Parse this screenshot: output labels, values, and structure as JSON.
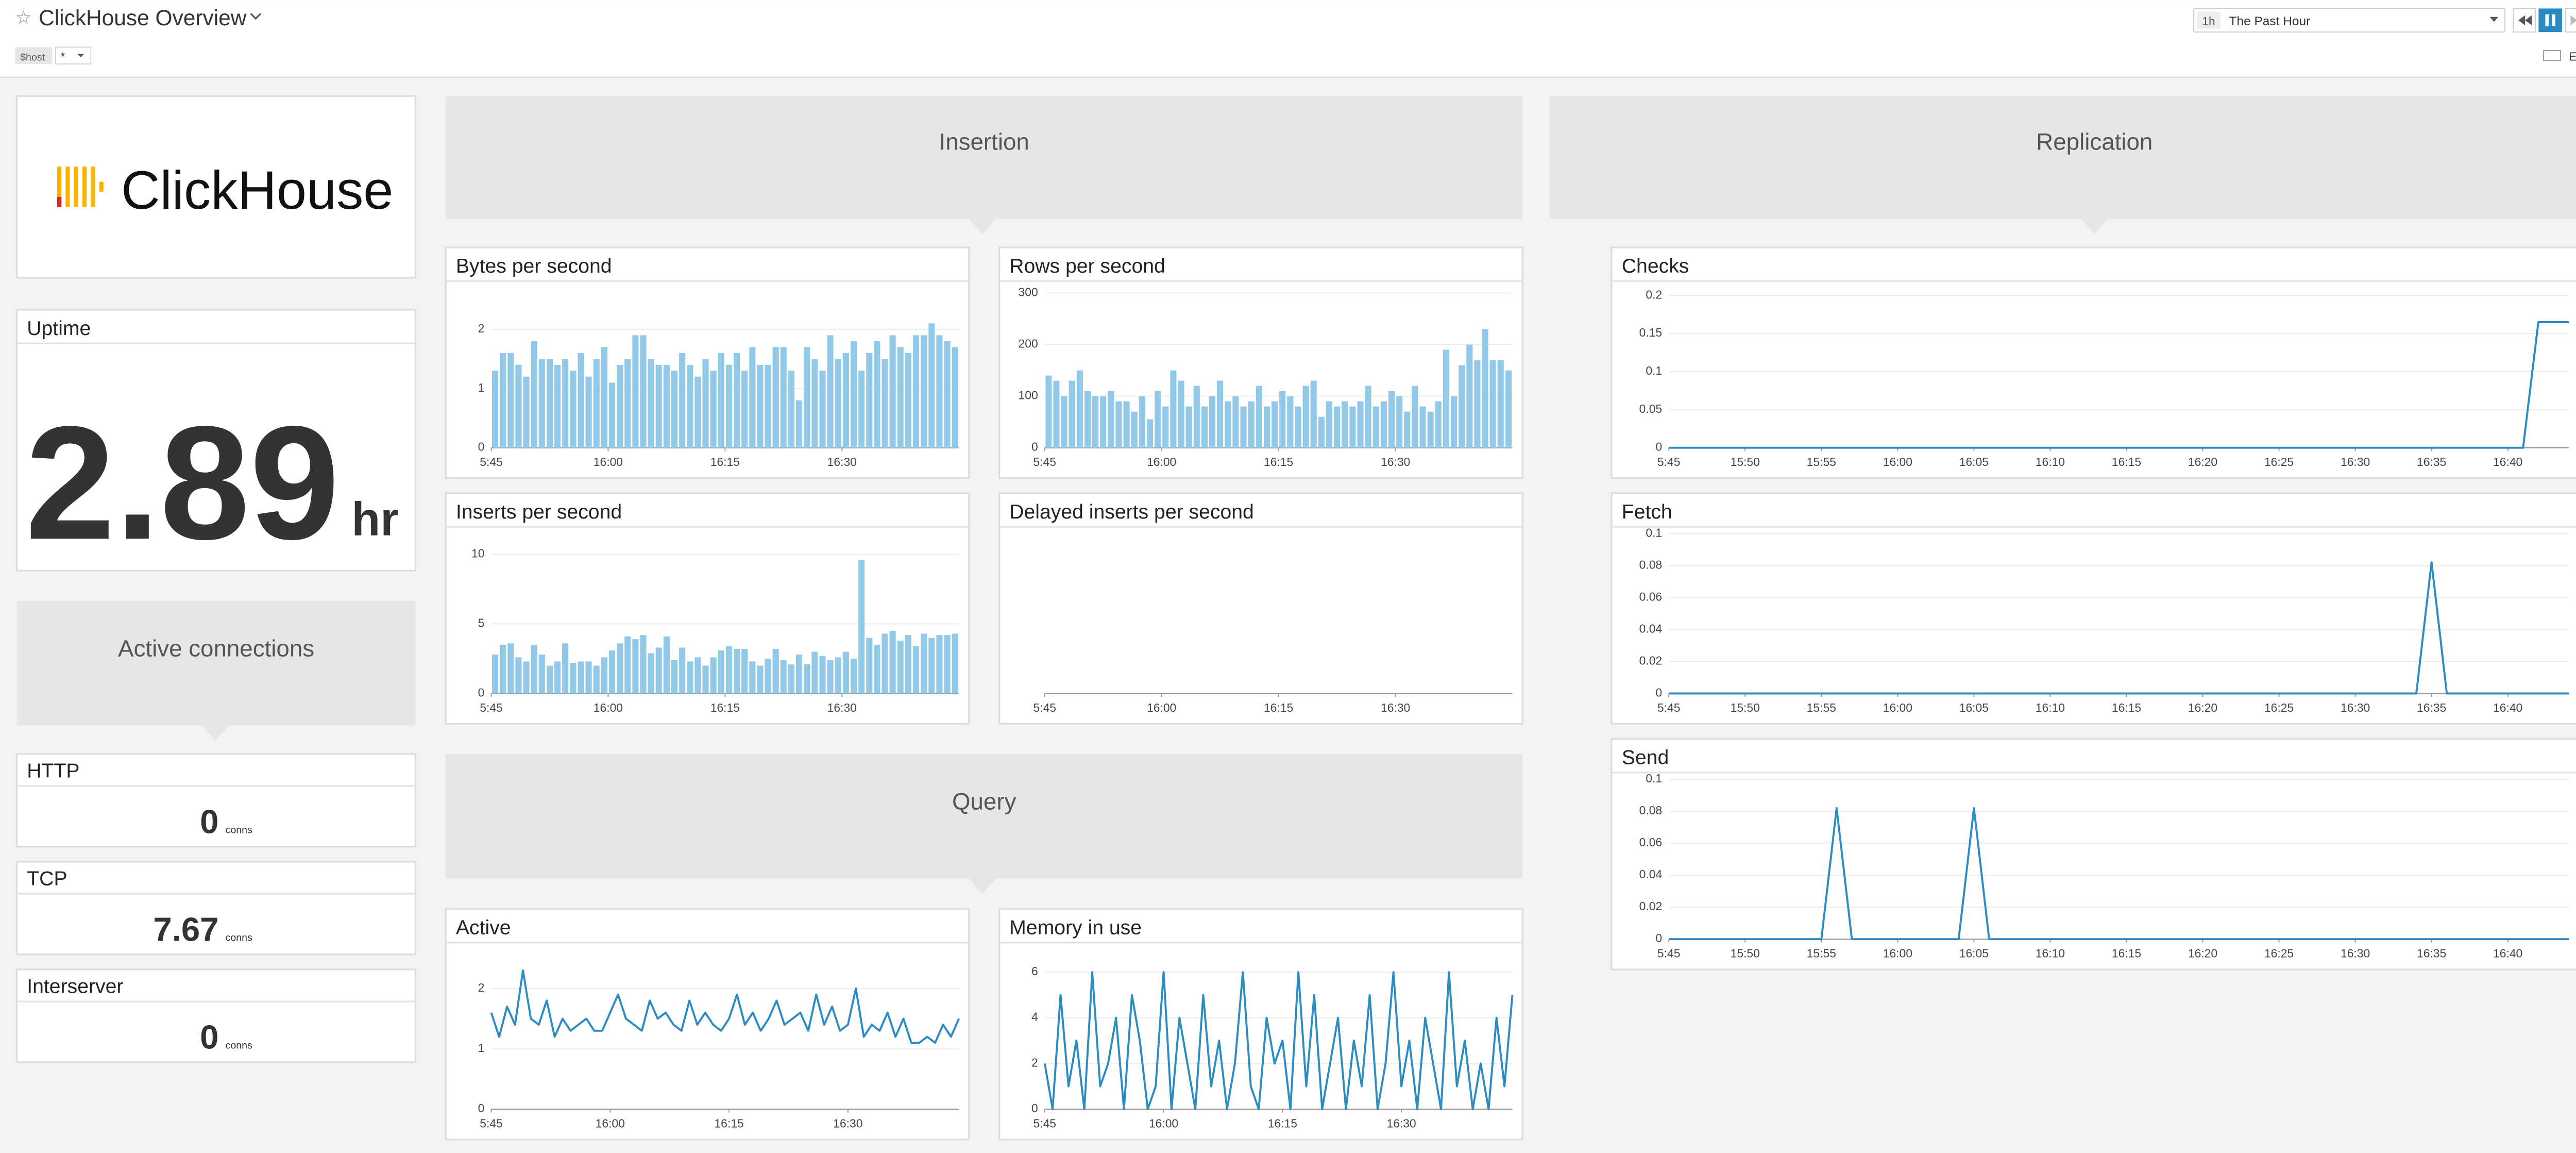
{
  "header": {
    "title": "ClickHouse Overview",
    "variable": "$host",
    "variable_value": "*",
    "range_short": "1h",
    "range": "The Past Hour",
    "esc": "Esc",
    "slash": "/"
  },
  "widgets": {
    "logo": "ClickHouse",
    "uptime": {
      "title": "Uptime",
      "value": 2.89,
      "unit": "hr"
    },
    "connections_group": "Active connections",
    "connections": [
      {
        "title": "HTTP",
        "value": 0,
        "unit": "conns"
      },
      {
        "title": "TCP",
        "value": 7.67,
        "unit": "conns"
      },
      {
        "title": "Interserver",
        "value": 0,
        "unit": "conns"
      }
    ]
  },
  "groups": [
    "Insertion",
    "Replication",
    "Query"
  ],
  "chart_data": [
    {
      "type": "bar",
      "title": "Bytes per second",
      "color": "#93c9e8",
      "ylim": [
        0,
        2.7
      ],
      "yticks": [
        0,
        1,
        2
      ],
      "grid": true,
      "categories": [
        "5:45",
        null,
        null,
        null,
        null,
        null,
        null,
        null,
        null,
        null,
        null,
        null,
        null,
        null,
        null,
        "16:00",
        null,
        null,
        null,
        null,
        null,
        null,
        null,
        null,
        null,
        null,
        null,
        null,
        null,
        null,
        "16:15",
        null,
        null,
        null,
        null,
        null,
        null,
        null,
        null,
        null,
        null,
        null,
        null,
        null,
        null,
        "16:30",
        null,
        null,
        null,
        null,
        null,
        null,
        null,
        null,
        null,
        null,
        null,
        null,
        null,
        null
      ],
      "values": [
        1.3,
        1.6,
        1.6,
        1.4,
        1.2,
        1.8,
        1.5,
        1.5,
        1.4,
        1.5,
        1.3,
        1.6,
        1.2,
        1.5,
        1.7,
        1.1,
        1.4,
        1.5,
        1.9,
        1.9,
        1.5,
        1.4,
        1.4,
        1.3,
        1.6,
        1.4,
        1.2,
        1.5,
        1.3,
        1.6,
        1.4,
        1.6,
        1.3,
        1.7,
        1.4,
        1.4,
        1.7,
        1.7,
        1.3,
        0.8,
        1.7,
        1.5,
        1.3,
        1.9,
        1.5,
        1.6,
        1.8,
        1.3,
        1.6,
        1.8,
        1.5,
        1.9,
        1.7,
        1.6,
        1.9,
        1.9,
        2.1,
        1.9,
        1.8,
        1.7
      ]
    },
    {
      "type": "bar",
      "title": "Rows per second",
      "color": "#93c9e8",
      "ylim": [
        0,
        310
      ],
      "yticks": [
        0,
        100,
        200,
        300
      ],
      "grid": true,
      "categories": [
        "5:45",
        null,
        null,
        null,
        null,
        null,
        null,
        null,
        null,
        null,
        null,
        null,
        null,
        null,
        null,
        "16:00",
        null,
        null,
        null,
        null,
        null,
        null,
        null,
        null,
        null,
        null,
        null,
        null,
        null,
        null,
        "16:15",
        null,
        null,
        null,
        null,
        null,
        null,
        null,
        null,
        null,
        null,
        null,
        null,
        null,
        null,
        "16:30",
        null,
        null,
        null,
        null,
        null,
        null,
        null,
        null,
        null,
        null,
        null,
        null,
        null,
        null
      ],
      "values": [
        140,
        130,
        100,
        130,
        150,
        110,
        100,
        100,
        110,
        90,
        90,
        70,
        100,
        55,
        110,
        80,
        150,
        130,
        80,
        120,
        80,
        100,
        130,
        90,
        100,
        80,
        90,
        120,
        80,
        90,
        110,
        100,
        80,
        120,
        130,
        60,
        90,
        80,
        90,
        80,
        90,
        120,
        80,
        90,
        110,
        100,
        70,
        120,
        80,
        70,
        90,
        190,
        100,
        160,
        200,
        170,
        230,
        170,
        170,
        150
      ]
    },
    {
      "type": "bar",
      "title": "Inserts per second",
      "color": "#93c9e8",
      "ylim": [
        0,
        11.5
      ],
      "yticks": [
        0,
        5,
        10
      ],
      "grid": true,
      "categories": [
        "5:45",
        null,
        null,
        null,
        null,
        null,
        null,
        null,
        null,
        null,
        null,
        null,
        null,
        null,
        null,
        "16:00",
        null,
        null,
        null,
        null,
        null,
        null,
        null,
        null,
        null,
        null,
        null,
        null,
        null,
        null,
        "16:15",
        null,
        null,
        null,
        null,
        null,
        null,
        null,
        null,
        null,
        null,
        null,
        null,
        null,
        null,
        "16:30",
        null,
        null,
        null,
        null,
        null,
        null,
        null,
        null,
        null,
        null,
        null,
        null,
        null,
        null
      ],
      "values": [
        2.8,
        3.5,
        3.6,
        2.6,
        2.3,
        3.5,
        2.8,
        2.0,
        2.3,
        3.6,
        2.2,
        2.3,
        2.3,
        2.0,
        2.6,
        3.1,
        3.6,
        4.1,
        3.9,
        4.2,
        2.9,
        3.3,
        4.1,
        2.4,
        3.3,
        2.3,
        2.6,
        2.0,
        2.6,
        3.1,
        3.4,
        3.2,
        3.2,
        2.3,
        2.0,
        2.5,
        3.2,
        2.4,
        2.1,
        2.8,
        2.1,
        3.0,
        2.7,
        2.4,
        2.6,
        3.0,
        2.5,
        9.6,
        4.0,
        3.5,
        4.3,
        4.5,
        3.8,
        4.2,
        3.4,
        4.3,
        4.0,
        4.2,
        4.2,
        4.3
      ]
    },
    {
      "type": "bar",
      "title": "Delayed inserts per second",
      "color": "#93c9e8",
      "categories": [
        "5:45",
        null,
        null,
        null,
        null,
        null,
        null,
        null,
        null,
        null,
        null,
        null,
        null,
        null,
        null,
        "16:00",
        null,
        null,
        null,
        null,
        null,
        null,
        null,
        null,
        null,
        null,
        null,
        null,
        null,
        null,
        "16:15",
        null,
        null,
        null,
        null,
        null,
        null,
        null,
        null,
        null,
        null,
        null,
        null,
        null,
        null,
        "16:30",
        null,
        null,
        null,
        null,
        null,
        null,
        null,
        null,
        null,
        null,
        null,
        null,
        null,
        null
      ],
      "values": [
        null,
        null,
        null,
        null,
        null,
        null,
        null,
        null,
        null,
        null,
        null,
        null,
        null,
        null,
        null,
        null,
        null,
        null,
        null,
        null,
        null,
        null,
        null,
        null,
        null,
        null,
        null,
        null,
        null,
        null,
        null,
        null,
        null,
        null,
        null,
        null,
        null,
        null,
        null,
        null,
        null,
        null,
        null,
        null,
        null,
        null,
        null,
        null,
        null,
        null,
        null,
        null,
        null,
        null,
        null,
        null,
        null,
        null,
        null,
        null
      ]
    },
    {
      "type": "line",
      "title": "Active",
      "color": "#2b8cc4",
      "ylim": [
        0,
        2.65
      ],
      "yticks": [
        0,
        1,
        2
      ],
      "grid": true,
      "categories": [
        "5:45",
        null,
        null,
        null,
        null,
        null,
        null,
        null,
        null,
        null,
        null,
        null,
        null,
        null,
        null,
        "16:00",
        null,
        null,
        null,
        null,
        null,
        null,
        null,
        null,
        null,
        null,
        null,
        null,
        null,
        null,
        "16:15",
        null,
        null,
        null,
        null,
        null,
        null,
        null,
        null,
        null,
        null,
        null,
        null,
        null,
        null,
        "16:30",
        null,
        null,
        null,
        null,
        null,
        null,
        null,
        null,
        null,
        null,
        null,
        null,
        null,
        null
      ],
      "values": [
        1.6,
        1.2,
        1.7,
        1.4,
        2.3,
        1.5,
        1.4,
        1.8,
        1.2,
        1.5,
        1.3,
        1.4,
        1.5,
        1.3,
        1.3,
        1.6,
        1.9,
        1.5,
        1.4,
        1.3,
        1.8,
        1.5,
        1.6,
        1.4,
        1.3,
        1.8,
        1.4,
        1.6,
        1.4,
        1.3,
        1.5,
        1.9,
        1.4,
        1.6,
        1.3,
        1.5,
        1.8,
        1.4,
        1.5,
        1.6,
        1.3,
        1.9,
        1.4,
        1.7,
        1.3,
        1.4,
        2.0,
        1.2,
        1.4,
        1.3,
        1.6,
        1.2,
        1.5,
        1.1,
        1.1,
        1.2,
        1.1,
        1.4,
        1.2,
        1.5
      ]
    },
    {
      "type": "line",
      "title": "Memory in use",
      "color": "#2b8cc4",
      "ylim": [
        0,
        7
      ],
      "yticks": [
        0,
        2,
        4,
        6
      ],
      "grid": true,
      "categories": [
        "5:45",
        null,
        null,
        null,
        null,
        null,
        null,
        null,
        null,
        null,
        null,
        null,
        null,
        null,
        null,
        "16:00",
        null,
        null,
        null,
        null,
        null,
        null,
        null,
        null,
        null,
        null,
        null,
        null,
        null,
        null,
        "16:15",
        null,
        null,
        null,
        null,
        null,
        null,
        null,
        null,
        null,
        null,
        null,
        null,
        null,
        null,
        "16:30",
        null,
        null,
        null,
        null,
        null,
        null,
        null,
        null,
        null,
        null,
        null,
        null,
        null,
        null
      ],
      "values": [
        2,
        0,
        5,
        1,
        3,
        0,
        6,
        1,
        2,
        4,
        0,
        5,
        3,
        0,
        1,
        6,
        0,
        4,
        2,
        0,
        5,
        1,
        3,
        0,
        2,
        6,
        1,
        0,
        4,
        2,
        3,
        0,
        6,
        1,
        5,
        0,
        2,
        4,
        0,
        3,
        1,
        5,
        0,
        2,
        6,
        1,
        3,
        0,
        4,
        2,
        0,
        6,
        1,
        3,
        0,
        2,
        0,
        4,
        1,
        5
      ]
    },
    {
      "type": "line",
      "title": "Checks",
      "color": "#2b8cc4",
      "ylim": [
        0,
        0.21
      ],
      "yticks": [
        0,
        0.05,
        0.1,
        0.15,
        0.2
      ],
      "grid": true,
      "categories": [
        "5:45",
        null,
        null,
        null,
        null,
        "15:50",
        null,
        null,
        null,
        null,
        "15:55",
        null,
        null,
        null,
        null,
        "16:00",
        null,
        null,
        null,
        null,
        "16:05",
        null,
        null,
        null,
        null,
        "16:10",
        null,
        null,
        null,
        null,
        "16:15",
        null,
        null,
        null,
        null,
        "16:20",
        null,
        null,
        null,
        null,
        "16:25",
        null,
        null,
        null,
        null,
        "16:30",
        null,
        null,
        null,
        null,
        "16:35",
        null,
        null,
        null,
        null,
        "16:40",
        null,
        null,
        null,
        null
      ],
      "values": [
        0,
        0,
        0,
        0,
        0,
        0,
        0,
        0,
        0,
        0,
        0,
        0,
        0,
        0,
        0,
        0,
        0,
        0,
        0,
        0,
        0,
        0,
        0,
        0,
        0,
        0,
        0,
        0,
        0,
        0,
        0,
        0,
        0,
        0,
        0,
        0,
        0,
        0,
        0,
        0,
        0,
        0,
        0,
        0,
        0,
        0,
        0,
        0,
        0,
        0,
        0,
        0,
        0,
        0,
        0,
        0,
        0,
        0.165,
        0.165,
        0.165
      ]
    },
    {
      "type": "line",
      "title": "Fetch",
      "color": "#2b8cc4",
      "ylim": [
        0,
        0.1
      ],
      "yticks": [
        0,
        0.02,
        0.04,
        0.06,
        0.08,
        0.1
      ],
      "grid": true,
      "categories": [
        "5:45",
        null,
        null,
        null,
        null,
        "15:50",
        null,
        null,
        null,
        null,
        "15:55",
        null,
        null,
        null,
        null,
        "16:00",
        null,
        null,
        null,
        null,
        "16:05",
        null,
        null,
        null,
        null,
        "16:10",
        null,
        null,
        null,
        null,
        "16:15",
        null,
        null,
        null,
        null,
        "16:20",
        null,
        null,
        null,
        null,
        "16:25",
        null,
        null,
        null,
        null,
        "16:30",
        null,
        null,
        null,
        null,
        "16:35",
        null,
        null,
        null,
        null,
        "16:40",
        null,
        null,
        null,
        null
      ],
      "values": [
        0,
        0,
        0,
        0,
        0,
        0,
        0,
        0,
        0,
        0,
        0,
        0,
        0,
        0,
        0,
        0,
        0,
        0,
        0,
        0,
        0,
        0,
        0,
        0,
        0,
        0,
        0,
        0,
        0,
        0,
        0,
        0,
        0,
        0,
        0,
        0,
        0,
        0,
        0,
        0,
        0,
        0,
        0,
        0,
        0,
        0,
        0,
        0,
        0,
        0,
        0.082,
        0,
        0,
        0,
        0,
        0,
        0,
        0,
        0,
        0
      ]
    },
    {
      "type": "line",
      "title": "Send",
      "color": "#2b8cc4",
      "ylim": [
        0,
        0.1
      ],
      "yticks": [
        0,
        0.02,
        0.04,
        0.06,
        0.08,
        0.1
      ],
      "grid": true,
      "categories": [
        "5:45",
        null,
        null,
        null,
        null,
        "15:50",
        null,
        null,
        null,
        null,
        "15:55",
        null,
        null,
        null,
        null,
        "16:00",
        null,
        null,
        null,
        null,
        "16:05",
        null,
        null,
        null,
        null,
        "16:10",
        null,
        null,
        null,
        null,
        "16:15",
        null,
        null,
        null,
        null,
        "16:20",
        null,
        null,
        null,
        null,
        "16:25",
        null,
        null,
        null,
        null,
        "16:30",
        null,
        null,
        null,
        null,
        "16:35",
        null,
        null,
        null,
        null,
        "16:40",
        null,
        null,
        null,
        null
      ],
      "values": [
        0,
        0,
        0,
        0,
        0,
        0,
        0,
        0,
        0,
        0,
        0,
        0.082,
        0,
        0,
        0,
        0,
        0,
        0,
        0,
        0,
        0.082,
        0,
        0,
        0,
        0,
        0,
        0,
        0,
        0,
        0,
        0,
        0,
        0,
        0,
        0,
        0,
        0,
        0,
        0,
        0,
        0,
        0,
        0,
        0,
        0,
        0,
        0,
        0,
        0,
        0,
        0,
        0,
        0,
        0,
        0,
        0,
        0,
        0,
        0,
        0
      ]
    }
  ]
}
